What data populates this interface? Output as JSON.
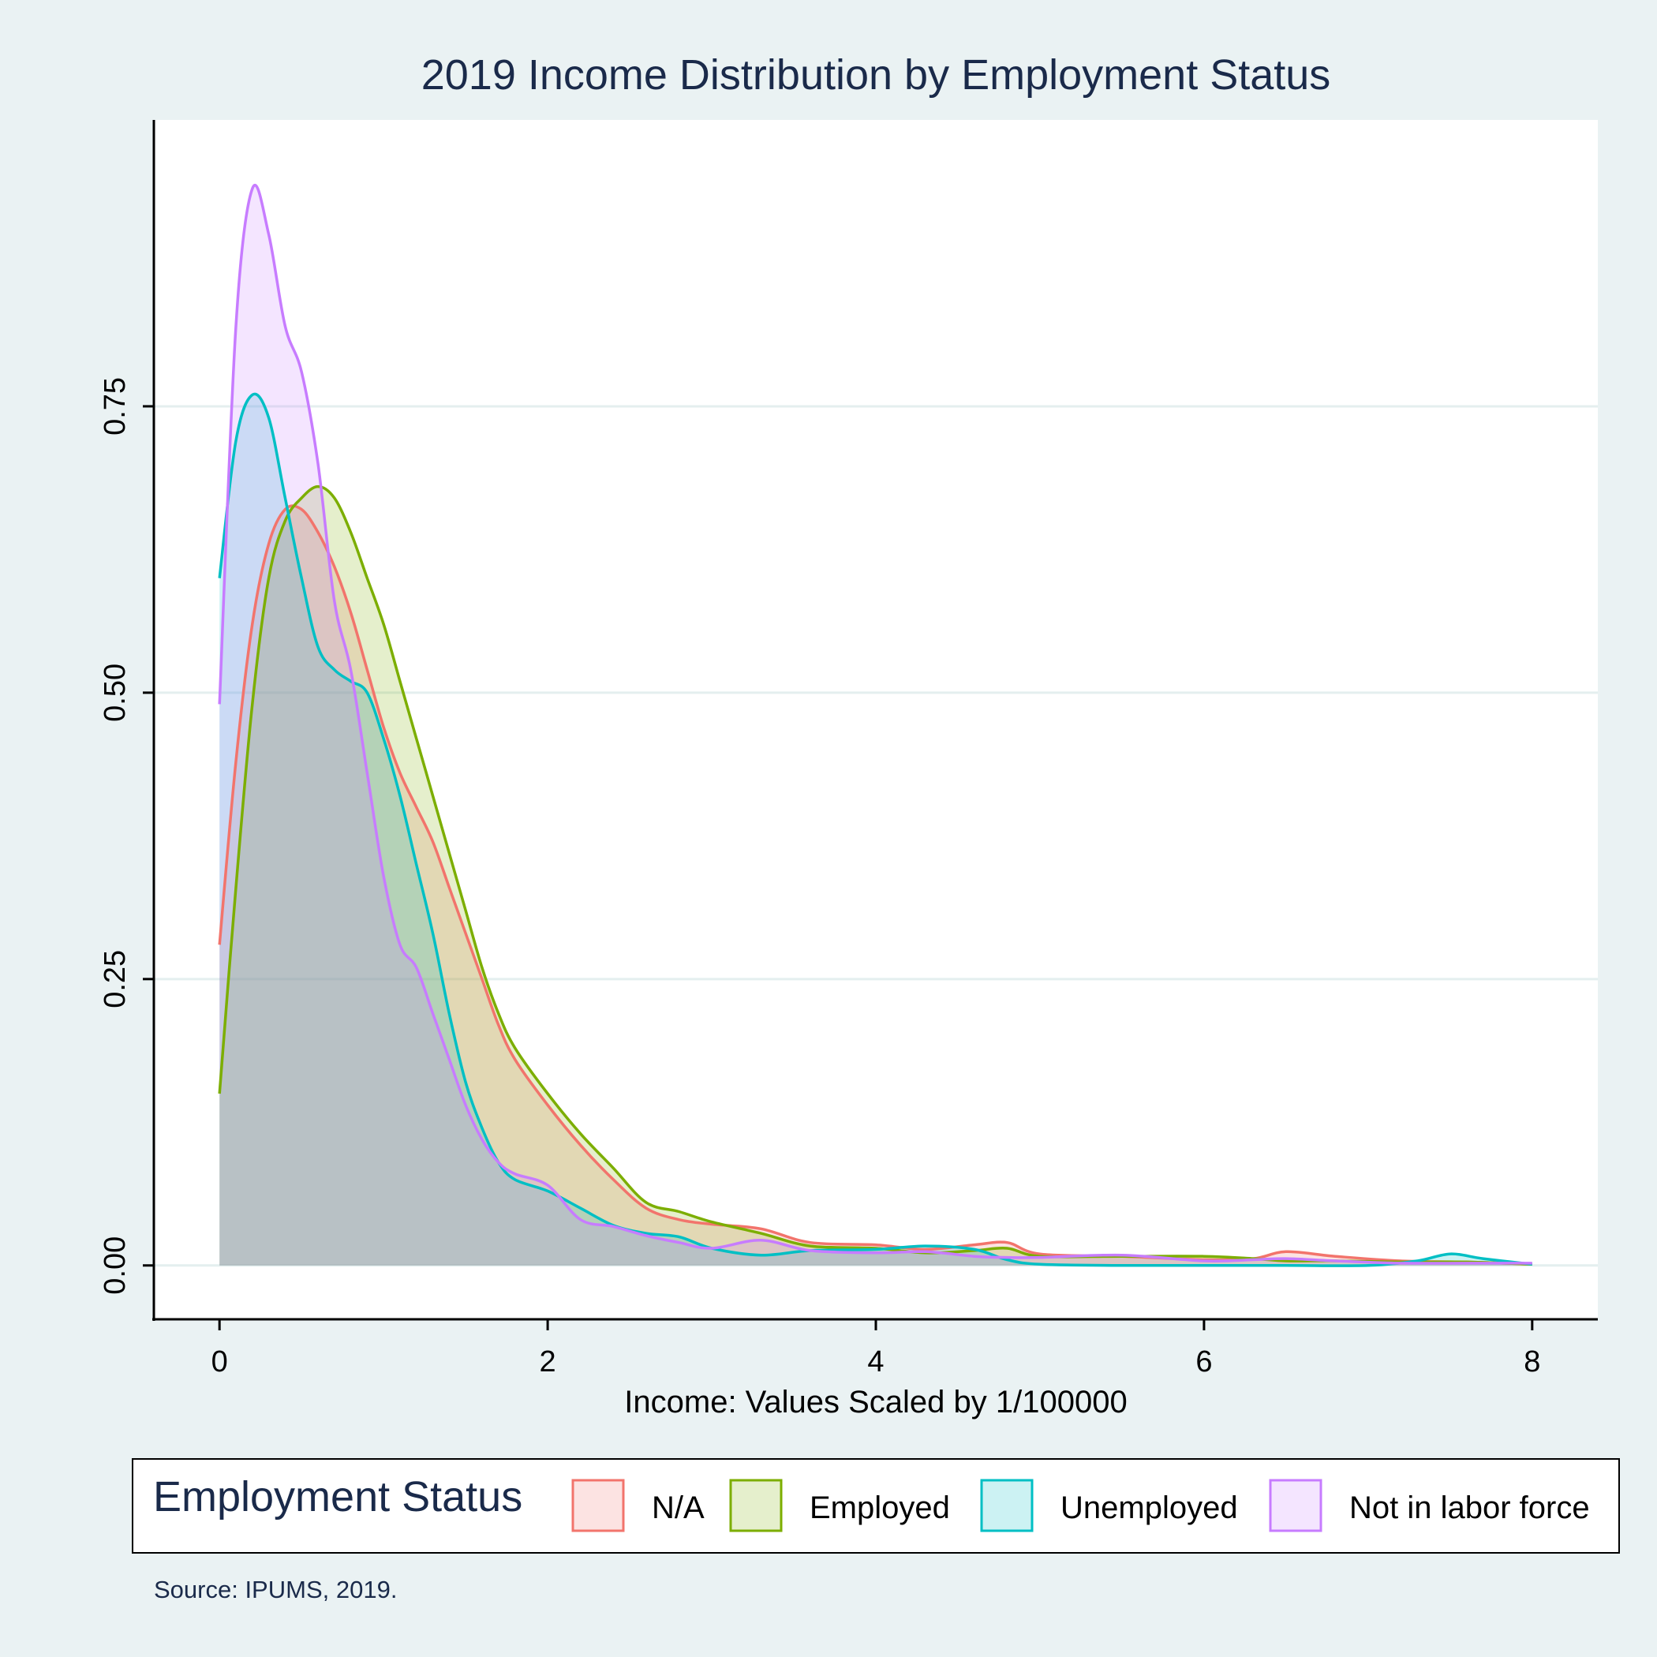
{
  "colors": {
    "background": "#eaf2f3",
    "plot_background": "#ffffff",
    "gridline": "#e4efef",
    "axis": "#000000",
    "title_text": "#1a2a4a",
    "series": [
      "#f2746c",
      "#7cae00",
      "#00bfc4",
      "#c77cff"
    ]
  },
  "chart_data": {
    "type": "area",
    "title": "2019 Income Distribution by Employment Status",
    "xlabel": "Income: Values Scaled by 1/100000",
    "ylabel": "",
    "xlim": [
      -0.4,
      8.4
    ],
    "ylim": [
      -0.047,
      1.0
    ],
    "x_ticks": [
      0,
      2,
      4,
      6,
      8
    ],
    "x_tick_labels": [
      "0",
      "2",
      "4",
      "6",
      "8"
    ],
    "y_ticks": [
      0,
      0.25,
      0.5,
      0.75
    ],
    "y_tick_labels": [
      "0.00",
      "0.25",
      "0.50",
      "0.75"
    ],
    "grid": "horizontal",
    "legend": {
      "title": "Employment Status",
      "position": "bottom",
      "entries": [
        "N/A",
        "Employed",
        "Unemployed",
        "Not in labor force"
      ]
    },
    "source_note": "Source: IPUMS, 2019.",
    "series": [
      {
        "name": "N/A",
        "points": [
          [
            0,
            0.28
          ],
          [
            0.1,
            0.44
          ],
          [
            0.2,
            0.56
          ],
          [
            0.3,
            0.63
          ],
          [
            0.4,
            0.66
          ],
          [
            0.5,
            0.66
          ],
          [
            0.6,
            0.64
          ],
          [
            0.7,
            0.61
          ],
          [
            0.8,
            0.57
          ],
          [
            0.9,
            0.52
          ],
          [
            1.0,
            0.47
          ],
          [
            1.1,
            0.43
          ],
          [
            1.2,
            0.4
          ],
          [
            1.3,
            0.37
          ],
          [
            1.4,
            0.33
          ],
          [
            1.5,
            0.29
          ],
          [
            1.6,
            0.25
          ],
          [
            1.7,
            0.21
          ],
          [
            1.8,
            0.18
          ],
          [
            2.0,
            0.14
          ],
          [
            2.2,
            0.105
          ],
          [
            2.4,
            0.075
          ],
          [
            2.6,
            0.05
          ],
          [
            2.8,
            0.04
          ],
          [
            3.0,
            0.036
          ],
          [
            3.3,
            0.032
          ],
          [
            3.6,
            0.02
          ],
          [
            4.0,
            0.018
          ],
          [
            4.3,
            0.014
          ],
          [
            4.6,
            0.018
          ],
          [
            4.8,
            0.02
          ],
          [
            5.0,
            0.01
          ],
          [
            5.5,
            0.008
          ],
          [
            6.0,
            0.005
          ],
          [
            6.3,
            0.006
          ],
          [
            6.5,
            0.012
          ],
          [
            6.8,
            0.008
          ],
          [
            7.2,
            0.004
          ],
          [
            7.6,
            0.003
          ],
          [
            8.0,
            0.001
          ]
        ]
      },
      {
        "name": "Employed",
        "points": [
          [
            0,
            0.15
          ],
          [
            0.1,
            0.33
          ],
          [
            0.2,
            0.49
          ],
          [
            0.3,
            0.6
          ],
          [
            0.4,
            0.65
          ],
          [
            0.5,
            0.67
          ],
          [
            0.6,
            0.68
          ],
          [
            0.7,
            0.67
          ],
          [
            0.8,
            0.64
          ],
          [
            0.9,
            0.6
          ],
          [
            1.0,
            0.56
          ],
          [
            1.1,
            0.51
          ],
          [
            1.2,
            0.46
          ],
          [
            1.3,
            0.41
          ],
          [
            1.4,
            0.36
          ],
          [
            1.5,
            0.31
          ],
          [
            1.6,
            0.26
          ],
          [
            1.7,
            0.22
          ],
          [
            1.8,
            0.19
          ],
          [
            2.0,
            0.15
          ],
          [
            2.2,
            0.115
          ],
          [
            2.4,
            0.085
          ],
          [
            2.6,
            0.055
          ],
          [
            2.8,
            0.047
          ],
          [
            3.0,
            0.038
          ],
          [
            3.3,
            0.028
          ],
          [
            3.6,
            0.017
          ],
          [
            4.0,
            0.015
          ],
          [
            4.3,
            0.011
          ],
          [
            4.6,
            0.013
          ],
          [
            4.8,
            0.015
          ],
          [
            5.0,
            0.008
          ],
          [
            5.5,
            0.008
          ],
          [
            6.0,
            0.008
          ],
          [
            6.3,
            0.006
          ],
          [
            6.5,
            0.004
          ],
          [
            6.8,
            0.004
          ],
          [
            7.2,
            0.003
          ],
          [
            7.6,
            0.003
          ],
          [
            8.0,
            0.001
          ]
        ]
      },
      {
        "name": "Unemployed",
        "points": [
          [
            0,
            0.6
          ],
          [
            0.1,
            0.72
          ],
          [
            0.2,
            0.76
          ],
          [
            0.3,
            0.74
          ],
          [
            0.4,
            0.67
          ],
          [
            0.5,
            0.6
          ],
          [
            0.6,
            0.54
          ],
          [
            0.7,
            0.52
          ],
          [
            0.8,
            0.51
          ],
          [
            0.9,
            0.5
          ],
          [
            1.0,
            0.46
          ],
          [
            1.1,
            0.41
          ],
          [
            1.2,
            0.35
          ],
          [
            1.3,
            0.29
          ],
          [
            1.4,
            0.22
          ],
          [
            1.5,
            0.16
          ],
          [
            1.6,
            0.12
          ],
          [
            1.7,
            0.09
          ],
          [
            1.8,
            0.075
          ],
          [
            2.0,
            0.065
          ],
          [
            2.2,
            0.05
          ],
          [
            2.4,
            0.035
          ],
          [
            2.6,
            0.028
          ],
          [
            2.8,
            0.025
          ],
          [
            3.0,
            0.015
          ],
          [
            3.3,
            0.009
          ],
          [
            3.6,
            0.013
          ],
          [
            4.0,
            0.014
          ],
          [
            4.3,
            0.017
          ],
          [
            4.6,
            0.014
          ],
          [
            4.8,
            0.005
          ],
          [
            5.0,
            0.001
          ],
          [
            5.5,
            0.0
          ],
          [
            6.0,
            0.0
          ],
          [
            6.5,
            0.0
          ],
          [
            7.0,
            0.0
          ],
          [
            7.3,
            0.004
          ],
          [
            7.5,
            0.01
          ],
          [
            7.7,
            0.006
          ],
          [
            8.0,
            0.001
          ]
        ]
      },
      {
        "name": "Not in labor force",
        "points": [
          [
            0,
            0.49
          ],
          [
            0.1,
            0.82
          ],
          [
            0.2,
            0.94
          ],
          [
            0.3,
            0.9
          ],
          [
            0.4,
            0.82
          ],
          [
            0.5,
            0.78
          ],
          [
            0.6,
            0.7
          ],
          [
            0.7,
            0.58
          ],
          [
            0.8,
            0.52
          ],
          [
            0.9,
            0.43
          ],
          [
            1.0,
            0.34
          ],
          [
            1.1,
            0.28
          ],
          [
            1.2,
            0.26
          ],
          [
            1.3,
            0.22
          ],
          [
            1.4,
            0.18
          ],
          [
            1.5,
            0.14
          ],
          [
            1.6,
            0.11
          ],
          [
            1.7,
            0.09
          ],
          [
            1.8,
            0.08
          ],
          [
            2.0,
            0.07
          ],
          [
            2.2,
            0.04
          ],
          [
            2.4,
            0.034
          ],
          [
            2.6,
            0.026
          ],
          [
            2.8,
            0.02
          ],
          [
            3.0,
            0.015
          ],
          [
            3.3,
            0.022
          ],
          [
            3.6,
            0.013
          ],
          [
            4.0,
            0.011
          ],
          [
            4.3,
            0.012
          ],
          [
            4.6,
            0.008
          ],
          [
            4.8,
            0.007
          ],
          [
            5.0,
            0.007
          ],
          [
            5.5,
            0.009
          ],
          [
            6.0,
            0.004
          ],
          [
            6.3,
            0.005
          ],
          [
            6.5,
            0.006
          ],
          [
            6.8,
            0.004
          ],
          [
            7.2,
            0.002
          ],
          [
            7.6,
            0.002
          ],
          [
            8.0,
            0.002
          ]
        ]
      }
    ]
  }
}
